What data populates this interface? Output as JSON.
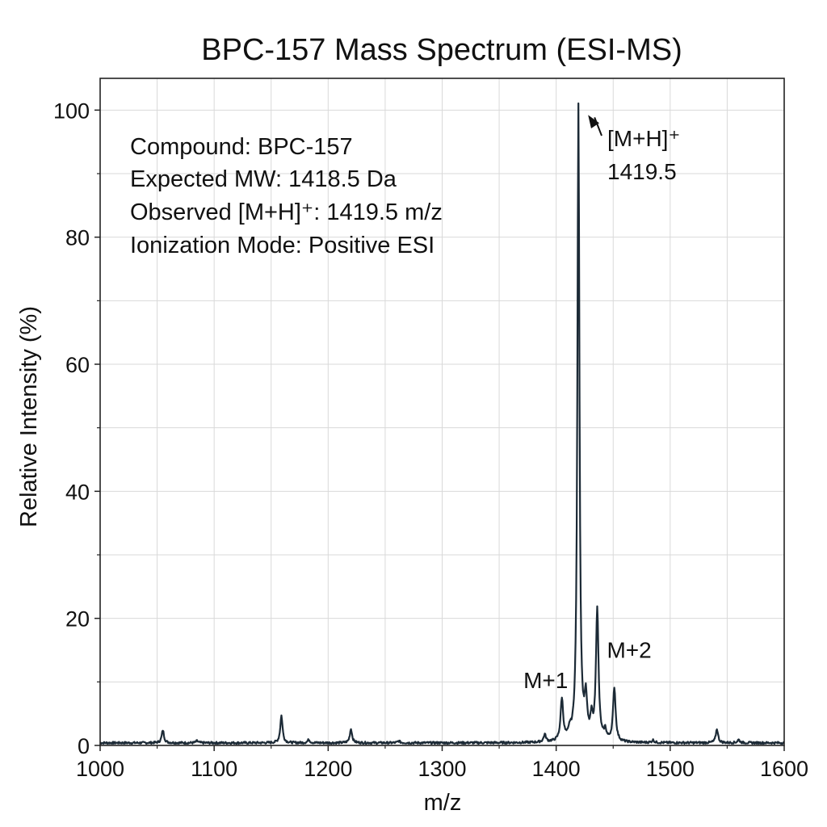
{
  "chart_data": {
    "type": "line",
    "title": "BPC-157 Mass Spectrum (ESI-MS)",
    "xlabel": "m/z",
    "ylabel": "Relative Intensity (%)",
    "xlim": [
      1000,
      1600
    ],
    "ylim": [
      0,
      105
    ],
    "x_ticks": [
      1000,
      1100,
      1200,
      1300,
      1400,
      1500,
      1600
    ],
    "x_tick_labels": [
      "1000",
      "1100",
      "1200",
      "1300",
      "1400",
      "1500",
      "1600"
    ],
    "y_ticks": [
      0,
      20,
      40,
      60,
      80,
      100
    ],
    "y_tick_labels": [
      "0",
      "20",
      "40",
      "60",
      "80",
      "100"
    ],
    "grid": true,
    "line_color": "#1c2a36",
    "baseline": 0.4,
    "peaks": [
      {
        "mz": 1055,
        "intensity": 2.0
      },
      {
        "mz": 1085,
        "intensity": 0.3
      },
      {
        "mz": 1159,
        "intensity": 4.3
      },
      {
        "mz": 1183,
        "intensity": 0.5
      },
      {
        "mz": 1220,
        "intensity": 2.2
      },
      {
        "mz": 1262,
        "intensity": 0.3
      },
      {
        "mz": 1390,
        "intensity": 1.2
      },
      {
        "mz": 1405,
        "intensity": 6.6
      },
      {
        "mz": 1412,
        "intensity": 1.2
      },
      {
        "mz": 1419.5,
        "intensity": 100
      },
      {
        "mz": 1426,
        "intensity": 6.0
      },
      {
        "mz": 1431,
        "intensity": 3.0
      },
      {
        "mz": 1436,
        "intensity": 20.8
      },
      {
        "mz": 1443,
        "intensity": 1.5
      },
      {
        "mz": 1451,
        "intensity": 8.5
      },
      {
        "mz": 1485,
        "intensity": 0.4
      },
      {
        "mz": 1541,
        "intensity": 2.2
      },
      {
        "mz": 1560,
        "intensity": 0.5
      }
    ],
    "info_box": [
      "Compound: BPC-157",
      "Expected MW: 1418.5 Da",
      "Observed [M+H]⁺: 1419.5 m/z",
      "Ionization Mode: Positive ESI"
    ],
    "annotations": {
      "main_peak_label": "[M+H]⁺",
      "main_peak_value": "1419.5",
      "main_peak_mz": 1419.5,
      "main_peak_intensity": 100,
      "m1_label": "M+1",
      "m1_mz": 1405,
      "m1_intensity": 6.6,
      "m2_label": "M+2",
      "m2_mz": 1436,
      "m2_intensity": 20.8
    }
  }
}
